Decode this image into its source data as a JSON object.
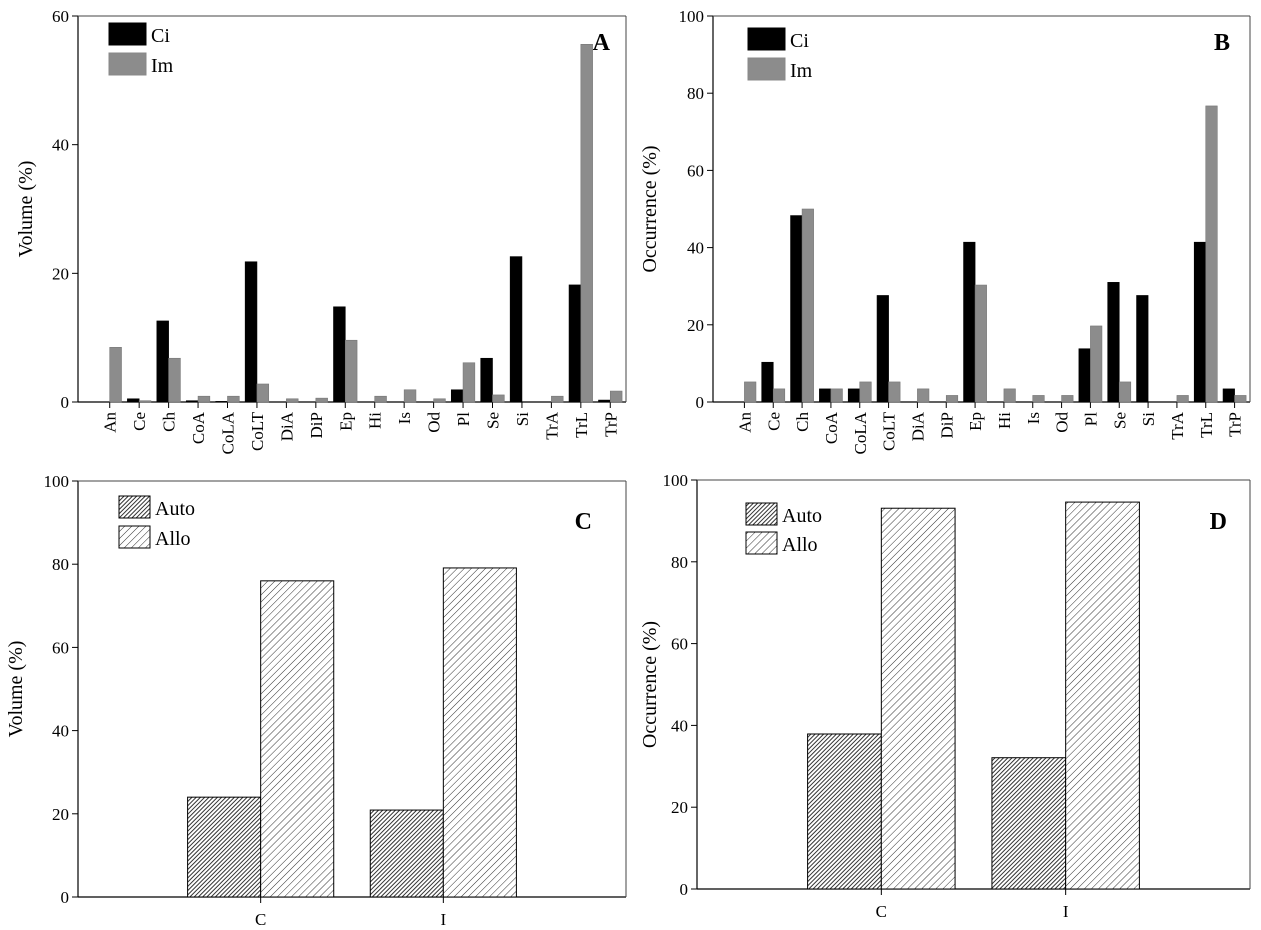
{
  "chart_data": [
    {
      "panel": "A",
      "type": "bar",
      "title": "",
      "panel_label": "A",
      "xlabel": "",
      "ylabel": "Volume (%)",
      "ylim": [
        0,
        60
      ],
      "yticks": [
        0,
        20,
        40,
        60
      ],
      "grid": false,
      "legend": "top-left",
      "categories": [
        "An",
        "Ce",
        "Ch",
        "CoA",
        "CoLA",
        "CoLT",
        "DiA",
        "DiP",
        "Ep",
        "Hi",
        "Is",
        "Od",
        "Pl",
        "Se",
        "Si",
        "TrA",
        "TrL",
        "TrP"
      ],
      "series": [
        {
          "name": "Ci",
          "color": "#000000",
          "values": [
            0,
            0.5,
            12.6,
            0.2,
            0.1,
            21.8,
            0,
            0,
            14.8,
            0,
            0,
            0,
            1.9,
            6.8,
            22.6,
            0,
            18.2,
            0.3
          ]
        },
        {
          "name": "Im",
          "color": "#8c8c8c",
          "values": [
            8.5,
            0.2,
            6.8,
            0.9,
            0.9,
            2.8,
            0.5,
            0.6,
            9.6,
            0.9,
            1.9,
            0.5,
            6.1,
            1.1,
            0,
            0.9,
            55.6,
            1.7
          ]
        }
      ]
    },
    {
      "panel": "B",
      "type": "bar",
      "title": "",
      "panel_label": "B",
      "xlabel": "",
      "ylabel": "Occurrence (%)",
      "ylim": [
        0,
        100
      ],
      "yticks": [
        0,
        20,
        40,
        60,
        80,
        100
      ],
      "grid": false,
      "legend": "top-left",
      "categories": [
        "An",
        "Ce",
        "Ch",
        "CoA",
        "CoLA",
        "CoLT",
        "DiA",
        "DiP",
        "Ep",
        "Hi",
        "Is",
        "Od",
        "Pl",
        "Se",
        "Si",
        "TrA",
        "TrL",
        "TrP"
      ],
      "series": [
        {
          "name": "Ci",
          "color": "#000000",
          "values": [
            0,
            10.3,
            48.3,
            3.4,
            3.4,
            27.6,
            0,
            0,
            41.4,
            0,
            0,
            0,
            13.8,
            31.0,
            27.6,
            0,
            41.4,
            3.4
          ]
        },
        {
          "name": "Im",
          "color": "#8c8c8c",
          "values": [
            5.2,
            3.4,
            50.0,
            3.4,
            5.2,
            5.2,
            3.4,
            1.7,
            30.3,
            3.4,
            1.7,
            1.7,
            19.7,
            5.2,
            0,
            1.7,
            76.7,
            1.7
          ]
        }
      ]
    },
    {
      "panel": "C",
      "type": "bar",
      "title": "",
      "panel_label": "C",
      "xlabel": "",
      "ylabel": "Volume (%)",
      "ylim": [
        0,
        100
      ],
      "yticks": [
        0,
        20,
        40,
        60,
        80,
        100
      ],
      "grid": false,
      "legend": "top-left",
      "categories": [
        "C",
        "I"
      ],
      "series": [
        {
          "name": "Auto",
          "pattern": "dense-hatch",
          "values": [
            24.0,
            20.9
          ]
        },
        {
          "name": "Allo",
          "pattern": "sparse-hatch",
          "values": [
            76.0,
            79.1
          ]
        }
      ]
    },
    {
      "panel": "D",
      "type": "bar",
      "title": "",
      "panel_label": "D",
      "xlabel": "",
      "ylabel": "Occurrence (%)",
      "ylim": [
        0,
        100
      ],
      "yticks": [
        0,
        20,
        40,
        60,
        80,
        100
      ],
      "grid": false,
      "legend": "top-left",
      "categories": [
        "C",
        "I"
      ],
      "series": [
        {
          "name": "Auto",
          "pattern": "dense-hatch",
          "values": [
            37.9,
            32.1
          ]
        },
        {
          "name": "Allo",
          "pattern": "sparse-hatch",
          "values": [
            93.1,
            94.6
          ]
        }
      ]
    }
  ]
}
